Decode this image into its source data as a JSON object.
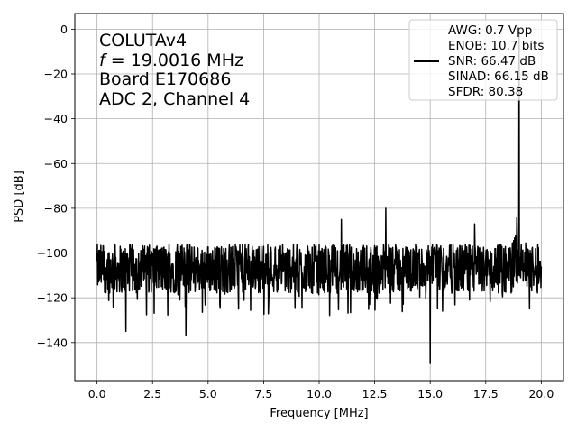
{
  "chart_data": {
    "type": "line",
    "title": "",
    "xlabel": "Frequency [MHz]",
    "ylabel": "PSD [dB]",
    "xlim": [
      -1.0,
      21.0
    ],
    "ylim": [
      -157,
      7
    ],
    "xticks": [
      0.0,
      2.5,
      5.0,
      7.5,
      10.0,
      12.5,
      15.0,
      17.5,
      20.0
    ],
    "xtick_labels": [
      "0.0",
      "2.5",
      "5.0",
      "7.5",
      "10.0",
      "12.5",
      "15.0",
      "17.5",
      "20.0"
    ],
    "yticks": [
      0,
      -20,
      -40,
      -60,
      -80,
      -100,
      -120,
      -140
    ],
    "ytick_labels": [
      "0",
      "−20",
      "−40",
      "−60",
      "−80",
      "−100",
      "−120",
      "−140"
    ],
    "grid": true,
    "legend_placement": "top-right",
    "line_color": "#000000",
    "annotation": {
      "line1": "COLUTAv4",
      "line2_symbol": "f",
      "line2_rest": " = 19.0016 MHz",
      "line3": "Board E170686",
      "line4": "ADC 2, Channel 4"
    },
    "series": [
      {
        "legend_lines": [
          "AWG: 0.7 Vpp",
          "ENOB: 10.7 bits",
          "SNR: 66.47 dB",
          "SINAD: 66.15 dB",
          "SFDR: 80.38"
        ],
        "noise_floor_db": -107,
        "noise_band_db": [
          -118,
          -96
        ],
        "x_range": [
          0.0,
          20.0
        ],
        "peaks": [
          {
            "x": 19.0016,
            "y": 0
          },
          {
            "x": 18.9,
            "y": -84
          },
          {
            "x": 11.0,
            "y": -85
          },
          {
            "x": 13.0,
            "y": -80
          },
          {
            "x": 15.0,
            "y": -81
          },
          {
            "x": 17.0,
            "y": -87
          }
        ],
        "dips": [
          {
            "x": 15.0,
            "y": -149
          },
          {
            "x": 4.0,
            "y": -137
          },
          {
            "x": 1.3,
            "y": -135
          }
        ]
      }
    ]
  }
}
